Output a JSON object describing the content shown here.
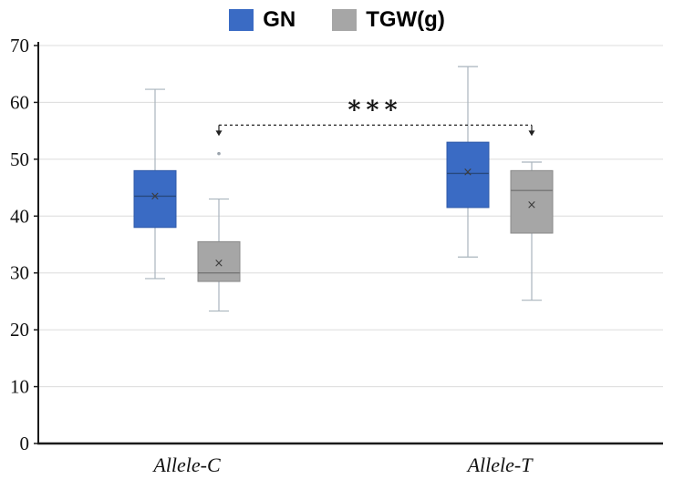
{
  "legend": {
    "items": [
      {
        "label": "GN",
        "color": "#3a6bc4"
      },
      {
        "label": "TGW(g)",
        "color": "#a6a6a6"
      }
    ]
  },
  "chart_data": {
    "type": "boxplot",
    "title": "",
    "categories": [
      "Allele-C",
      "Allele-T"
    ],
    "ylim": [
      0,
      70
    ],
    "yticks": [
      0,
      10,
      20,
      30,
      40,
      50,
      60,
      70
    ],
    "grid": true,
    "legend_position": "top",
    "series": [
      {
        "name": "GN",
        "color": "#3a6bc4",
        "border": "#2f5aa8",
        "median_color": "#27497f",
        "boxes": [
          {
            "category": "Allele-C",
            "whisker_low": 29,
            "q1": 38,
            "median": 43.5,
            "q3": 48,
            "whisker_high": 62.3,
            "mean": 43.5,
            "outliers": []
          },
          {
            "category": "Allele-T",
            "whisker_low": 32.8,
            "q1": 41.5,
            "median": 47.5,
            "q3": 53,
            "whisker_high": 66.3,
            "mean": 47.7,
            "outliers": []
          }
        ]
      },
      {
        "name": "TGW(g)",
        "color": "#a6a6a6",
        "border": "#8a8a8a",
        "median_color": "#757575",
        "boxes": [
          {
            "category": "Allele-C",
            "whisker_low": 23.3,
            "q1": 28.5,
            "median": 30,
            "q3": 35.5,
            "whisker_high": 43,
            "mean": 31.7,
            "outliers": [
              51
            ]
          },
          {
            "category": "Allele-T",
            "whisker_low": 25.2,
            "q1": 37,
            "median": 44.5,
            "q3": 48,
            "whisker_high": 49.5,
            "mean": 42,
            "outliers": []
          }
        ]
      }
    ],
    "annotation": {
      "text": "***",
      "y": 56,
      "from_series": "TGW(g)",
      "from_category": "Allele-C",
      "to_category": "Allele-T"
    }
  }
}
